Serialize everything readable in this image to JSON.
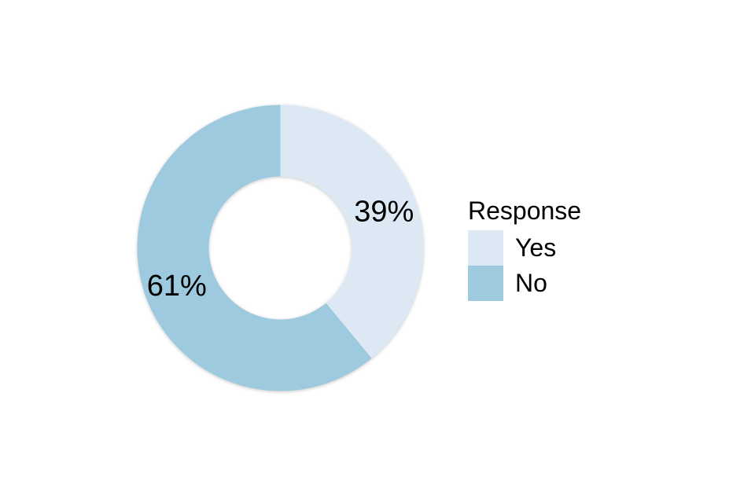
{
  "chart_data": {
    "type": "pie",
    "donut": true,
    "title": "",
    "legend_title": "Response",
    "legend_position": "right",
    "categories": [
      "Yes",
      "No"
    ],
    "values": [
      39,
      61
    ],
    "unit": "%",
    "slice_labels": [
      "39%",
      "61%"
    ],
    "colors": [
      "#dce9f5",
      "#9dcade"
    ],
    "label_color": "#000000",
    "start_angle_deg": 0,
    "direction": "clockwise",
    "background_color": "#ffffff"
  }
}
